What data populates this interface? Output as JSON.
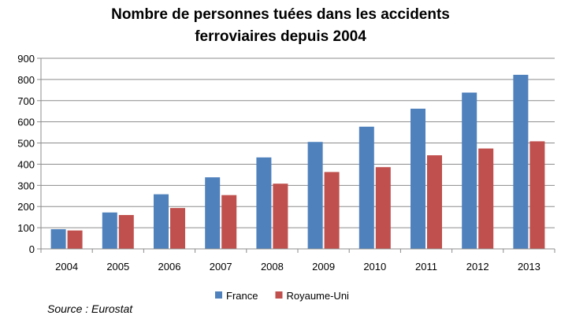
{
  "chart_data": {
    "type": "bar",
    "title_lines": [
      "Nombre de personnes tuées dans les accidents",
      "ferroviaires depuis 2004"
    ],
    "categories": [
      "2004",
      "2005",
      "2006",
      "2007",
      "2008",
      "2009",
      "2010",
      "2011",
      "2012",
      "2013"
    ],
    "series": [
      {
        "name": "France",
        "color": "#4F81BD",
        "values": [
          93,
          172,
          258,
          338,
          432,
          505,
          577,
          662,
          738,
          822
        ]
      },
      {
        "name": "Royaume-Uni",
        "color": "#C0504D",
        "values": [
          87,
          160,
          193,
          254,
          308,
          363,
          386,
          442,
          474,
          508
        ]
      }
    ],
    "ylim": [
      0,
      900
    ],
    "yticks": [
      "0",
      "100",
      "200",
      "300",
      "400",
      "500",
      "600",
      "700",
      "800",
      "900"
    ],
    "grid": true,
    "legend_position": "bottom-center",
    "source": "Source : Eurostat"
  }
}
